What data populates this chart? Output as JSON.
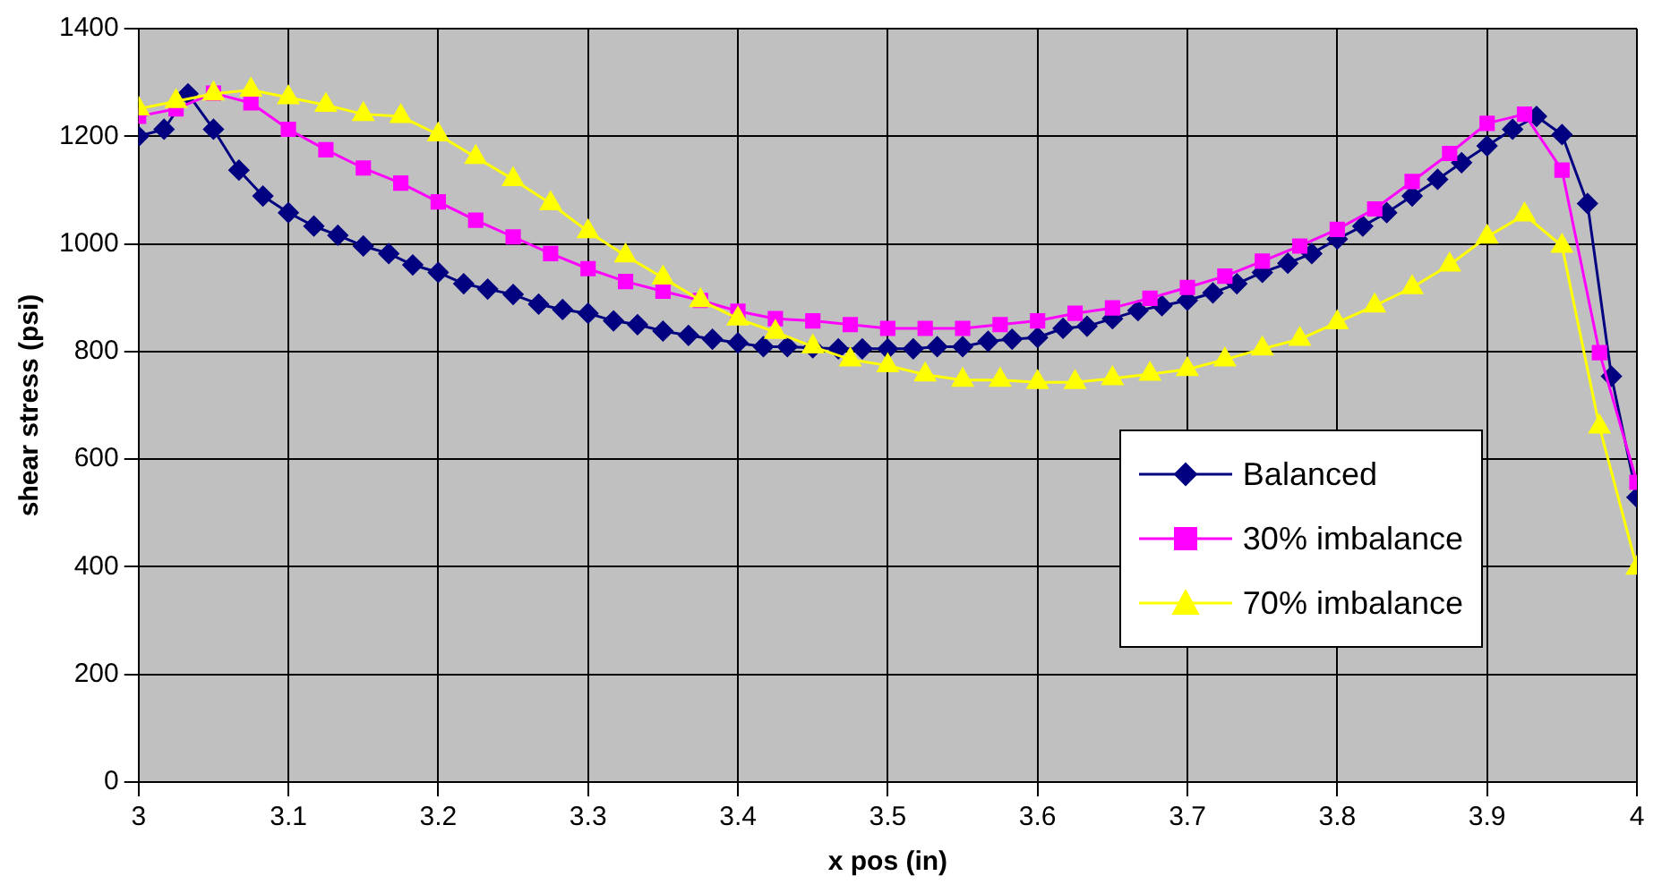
{
  "chart_data": {
    "type": "line",
    "xlabel": "x pos (in)",
    "ylabel": "shear stress (psi)",
    "xlim": [
      3,
      4
    ],
    "xticks": [
      3,
      3.1,
      3.2,
      3.3,
      3.4,
      3.5,
      3.6,
      3.7,
      3.8,
      3.9,
      4
    ],
    "ylim": [
      0,
      1400
    ],
    "yticks": [
      0,
      200,
      400,
      600,
      800,
      1000,
      1200,
      1400
    ],
    "grid": true,
    "legend": "bottom right",
    "line_style": "solid",
    "series": [
      {
        "name": "Balanced",
        "color": "#000080",
        "marker": "diamond",
        "x": [
          3,
          3.017,
          3.033,
          3.05,
          3.067,
          3.083,
          3.1,
          3.117,
          3.133,
          3.15,
          3.167,
          3.183,
          3.2,
          3.217,
          3.233,
          3.25,
          3.267,
          3.283,
          3.3,
          3.317,
          3.333,
          3.35,
          3.367,
          3.383,
          3.4,
          3.417,
          3.433,
          3.45,
          3.467,
          3.483,
          3.5,
          3.517,
          3.533,
          3.55,
          3.567,
          3.583,
          3.6,
          3.617,
          3.633,
          3.65,
          3.667,
          3.683,
          3.7,
          3.717,
          3.733,
          3.75,
          3.767,
          3.783,
          3.8,
          3.817,
          3.833,
          3.85,
          3.867,
          3.883,
          3.9,
          3.917,
          3.933,
          3.95,
          3.967,
          3.983,
          4
        ],
        "values": [
          1200,
          1213,
          1279,
          1213,
          1137,
          1089,
          1058,
          1033,
          1016,
          996,
          982,
          961,
          947,
          926,
          916,
          906,
          888,
          878,
          871,
          857,
          850,
          838,
          830,
          823,
          816,
          809,
          809,
          807,
          805,
          805,
          805,
          805,
          809,
          809,
          819,
          823,
          826,
          843,
          847,
          861,
          876,
          885,
          895,
          909,
          926,
          947,
          964,
          982,
          1009,
          1033,
          1058,
          1089,
          1120,
          1151,
          1182,
          1213,
          1237,
          1203,
          1075,
          754,
          529
        ]
      },
      {
        "name": "30% imbalance",
        "color": "#ff00ff",
        "marker": "square",
        "x": [
          3,
          3.025,
          3.05,
          3.075,
          3.1,
          3.125,
          3.15,
          3.175,
          3.2,
          3.225,
          3.25,
          3.275,
          3.3,
          3.325,
          3.35,
          3.375,
          3.4,
          3.425,
          3.45,
          3.475,
          3.5,
          3.525,
          3.55,
          3.575,
          3.6,
          3.625,
          3.65,
          3.675,
          3.7,
          3.725,
          3.75,
          3.775,
          3.8,
          3.825,
          3.85,
          3.875,
          3.9,
          3.925,
          3.95,
          3.975,
          4
        ],
        "values": [
          1237,
          1251,
          1280,
          1262,
          1213,
          1175,
          1141,
          1113,
          1078,
          1044,
          1013,
          982,
          954,
          930,
          912,
          895,
          875,
          861,
          857,
          850,
          843,
          843,
          843,
          850,
          857,
          871,
          881,
          899,
          919,
          940,
          968,
          996,
          1027,
          1065,
          1116,
          1168,
          1224,
          1241,
          1137,
          798,
          557
        ]
      },
      {
        "name": "70% imbalance",
        "color": "#ffff00",
        "marker": "triangle",
        "x": [
          3,
          3.025,
          3.05,
          3.075,
          3.1,
          3.125,
          3.15,
          3.175,
          3.2,
          3.225,
          3.25,
          3.275,
          3.3,
          3.325,
          3.35,
          3.375,
          3.4,
          3.425,
          3.45,
          3.475,
          3.5,
          3.525,
          3.55,
          3.575,
          3.6,
          3.625,
          3.65,
          3.675,
          3.7,
          3.725,
          3.75,
          3.775,
          3.8,
          3.825,
          3.85,
          3.875,
          3.9,
          3.925,
          3.95,
          3.975,
          4
        ],
        "values": [
          1251,
          1265,
          1279,
          1286,
          1272,
          1258,
          1241,
          1237,
          1203,
          1161,
          1120,
          1075,
          1023,
          978,
          937,
          895,
          861,
          836,
          809,
          785,
          774,
          757,
          747,
          747,
          743,
          743,
          750,
          758,
          767,
          785,
          805,
          823,
          854,
          885,
          919,
          961,
          1013,
          1054,
          996,
          660,
          398
        ]
      }
    ]
  }
}
